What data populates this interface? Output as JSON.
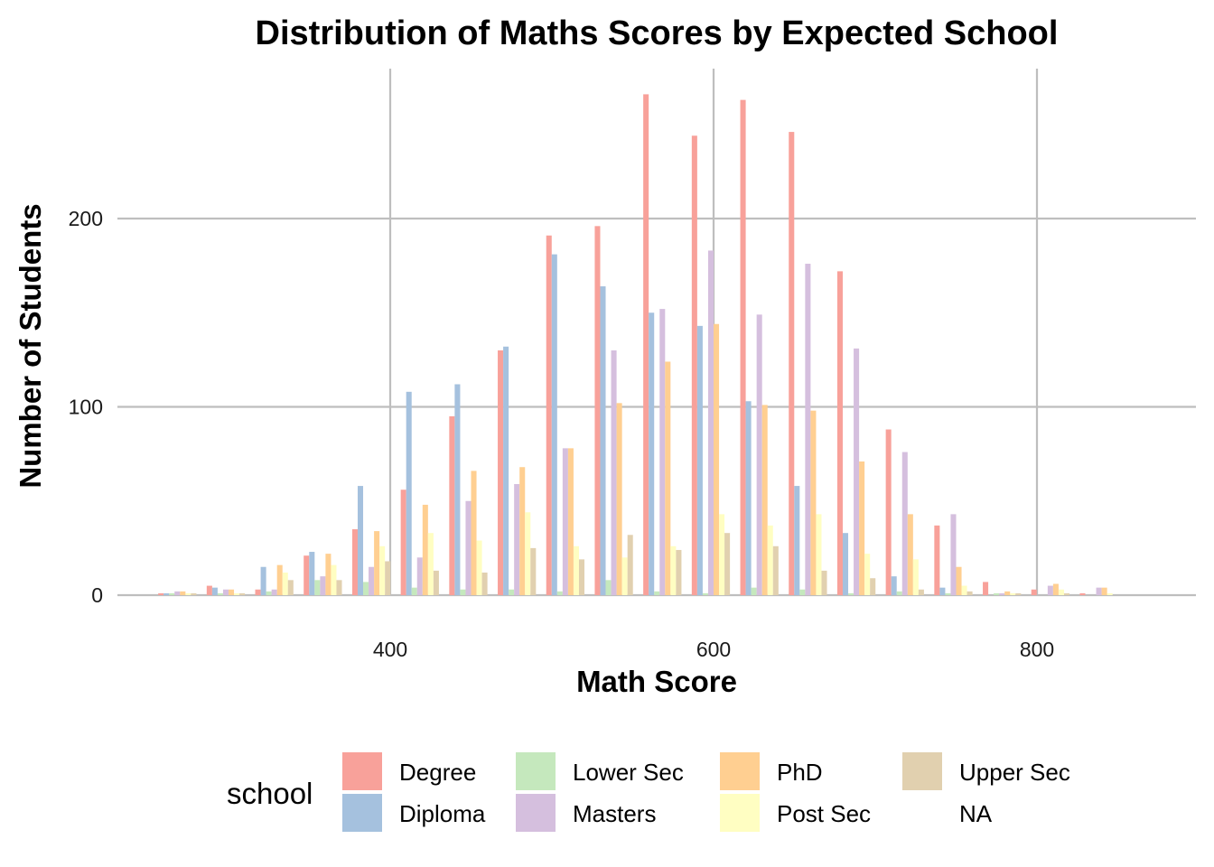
{
  "chart_data": {
    "type": "bar",
    "title": "Distribution of Maths Scores by Expected School",
    "xlabel": "Math Score",
    "ylabel": "Number of Students",
    "xlim": [
      240,
      905
    ],
    "ylim": [
      0,
      268
    ],
    "x_ticks": [
      400,
      600,
      800
    ],
    "y_ticks": [
      0,
      100,
      200
    ],
    "grid": true,
    "legend": {
      "title": "school",
      "position": "bottom"
    },
    "bin_width": 30,
    "bin_centers": [
      270,
      300,
      330,
      360,
      390,
      420,
      450,
      480,
      510,
      540,
      570,
      600,
      630,
      660,
      690,
      720,
      750,
      780,
      810,
      840
    ],
    "series": [
      {
        "name": "Degree",
        "color": "#F8A19A",
        "values": [
          1,
          5,
          3,
          21,
          35,
          56,
          95,
          130,
          191,
          196,
          266,
          244,
          263,
          246,
          172,
          88,
          37,
          7,
          3,
          1
        ]
      },
      {
        "name": "Diploma",
        "color": "#A5C1DE",
        "values": [
          1,
          4,
          15,
          23,
          58,
          108,
          112,
          132,
          181,
          164,
          150,
          143,
          103,
          58,
          33,
          10,
          4,
          0,
          0,
          0
        ]
      },
      {
        "name": "Lower Sec",
        "color": "#C5E8BD",
        "values": [
          1,
          1,
          2,
          8,
          7,
          4,
          3,
          3,
          2,
          8,
          2,
          1,
          4,
          3,
          1,
          2,
          1,
          1,
          0,
          0
        ]
      },
      {
        "name": "Masters",
        "color": "#D5BFDE",
        "values": [
          2,
          3,
          3,
          10,
          15,
          20,
          50,
          59,
          78,
          130,
          152,
          183,
          149,
          176,
          131,
          76,
          43,
          1,
          5,
          4
        ]
      },
      {
        "name": "PhD",
        "color": "#FFCF91",
        "values": [
          2,
          3,
          16,
          22,
          34,
          48,
          66,
          68,
          78,
          102,
          124,
          144,
          101,
          98,
          71,
          43,
          15,
          2,
          6,
          4
        ]
      },
      {
        "name": "Post Sec",
        "color": "#FFFEC2",
        "values": [
          1,
          1,
          12,
          16,
          26,
          33,
          29,
          44,
          26,
          20,
          26,
          43,
          37,
          43,
          22,
          19,
          5,
          1,
          3,
          1
        ]
      },
      {
        "name": "Upper Sec",
        "color": "#E1D0AF",
        "values": [
          1,
          1,
          8,
          8,
          18,
          13,
          12,
          25,
          19,
          32,
          24,
          33,
          26,
          13,
          9,
          3,
          2,
          1,
          1,
          0
        ]
      },
      {
        "name": "NA",
        "color": "#FFFFFF",
        "values": [
          0,
          0,
          0,
          0,
          0,
          0,
          0,
          0,
          0,
          0,
          0,
          0,
          0,
          0,
          0,
          0,
          0,
          0,
          0,
          0
        ]
      }
    ]
  }
}
